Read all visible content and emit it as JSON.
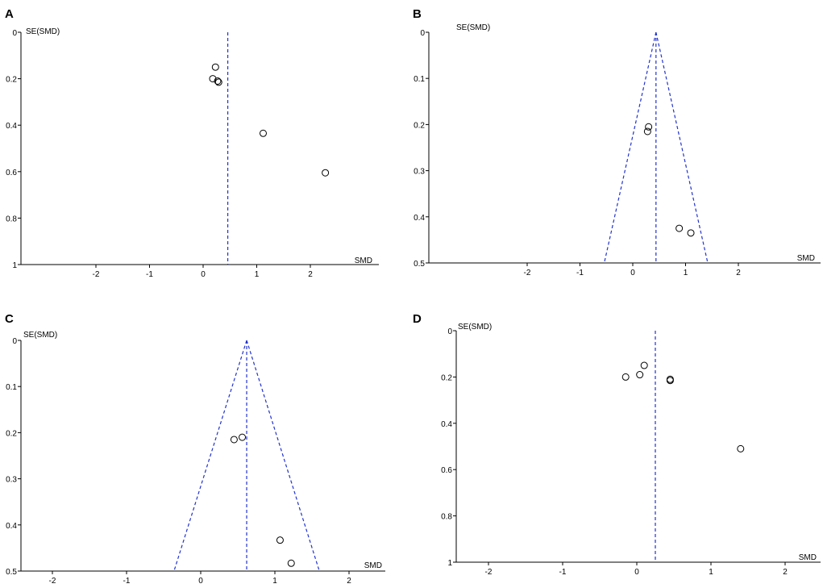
{
  "chart_data": [
    {
      "panel": "A",
      "type": "scatter",
      "xlabel": "SMD",
      "ylabel": "SE(SMD)",
      "x_ticks": [
        "-2",
        "-1",
        "0",
        "1",
        "2"
      ],
      "y_ticks": [
        "0",
        "0.2",
        "0.4",
        "0.6",
        "0.8",
        "1"
      ],
      "xlim": [
        -3.5,
        3.3
      ],
      "ylim": [
        0,
        1
      ],
      "y_reversed": true,
      "pooled_smd": 0.46,
      "funnel": false,
      "points": [
        {
          "x": 0.23,
          "y": 0.15
        },
        {
          "x": 0.18,
          "y": 0.2
        },
        {
          "x": 0.27,
          "y": 0.21
        },
        {
          "x": 0.29,
          "y": 0.215
        },
        {
          "x": 1.12,
          "y": 0.435
        },
        {
          "x": 2.28,
          "y": 0.605
        }
      ]
    },
    {
      "panel": "B",
      "type": "scatter",
      "xlabel": "SMD",
      "ylabel": "SE(SMD)",
      "x_ticks": [
        "-2",
        "-1",
        "0",
        "1",
        "2"
      ],
      "y_ticks": [
        "0",
        "0.1",
        "0.2",
        "0.3",
        "0.4",
        "0.5"
      ],
      "xlim": [
        -3.5,
        3.3
      ],
      "ylim": [
        0,
        0.5
      ],
      "y_reversed": true,
      "pooled_smd": 0.44,
      "funnel": true,
      "points": [
        {
          "x": 0.3,
          "y": 0.205
        },
        {
          "x": 0.28,
          "y": 0.215
        },
        {
          "x": 0.88,
          "y": 0.425
        },
        {
          "x": 1.1,
          "y": 0.435
        }
      ]
    },
    {
      "panel": "C",
      "type": "scatter",
      "xlabel": "SMD",
      "ylabel": "SE(SMD)",
      "x_ticks": [
        "-2",
        "-1",
        "0",
        "1",
        "2"
      ],
      "y_ticks": [
        "0",
        "0.1",
        "0.2",
        "0.3",
        "0.4",
        "0.5"
      ],
      "xlim": [
        -2.6,
        2.5
      ],
      "ylim": [
        0,
        0.5
      ],
      "y_reversed": true,
      "pooled_smd": 0.62,
      "funnel": true,
      "points": [
        {
          "x": 0.56,
          "y": 0.21
        },
        {
          "x": 0.45,
          "y": 0.215
        },
        {
          "x": 1.07,
          "y": 0.433
        },
        {
          "x": 1.22,
          "y": 0.483
        }
      ]
    },
    {
      "panel": "D",
      "type": "scatter",
      "xlabel": "SMD",
      "ylabel": "SE(SMD)",
      "x_ticks": [
        "-2",
        "-1",
        "0",
        "1",
        "2"
      ],
      "y_ticks": [
        "0",
        "0.2",
        "0.4",
        "0.6",
        "0.8",
        "1"
      ],
      "xlim": [
        -2.5,
        2.5
      ],
      "ylim": [
        0,
        1
      ],
      "y_reversed": true,
      "pooled_smd": 0.25,
      "funnel": false,
      "points": [
        {
          "x": 0.1,
          "y": 0.15
        },
        {
          "x": -0.15,
          "y": 0.2
        },
        {
          "x": 0.04,
          "y": 0.19
        },
        {
          "x": 0.45,
          "y": 0.21
        },
        {
          "x": 0.45,
          "y": 0.215
        },
        {
          "x": 1.4,
          "y": 0.51
        }
      ]
    }
  ]
}
